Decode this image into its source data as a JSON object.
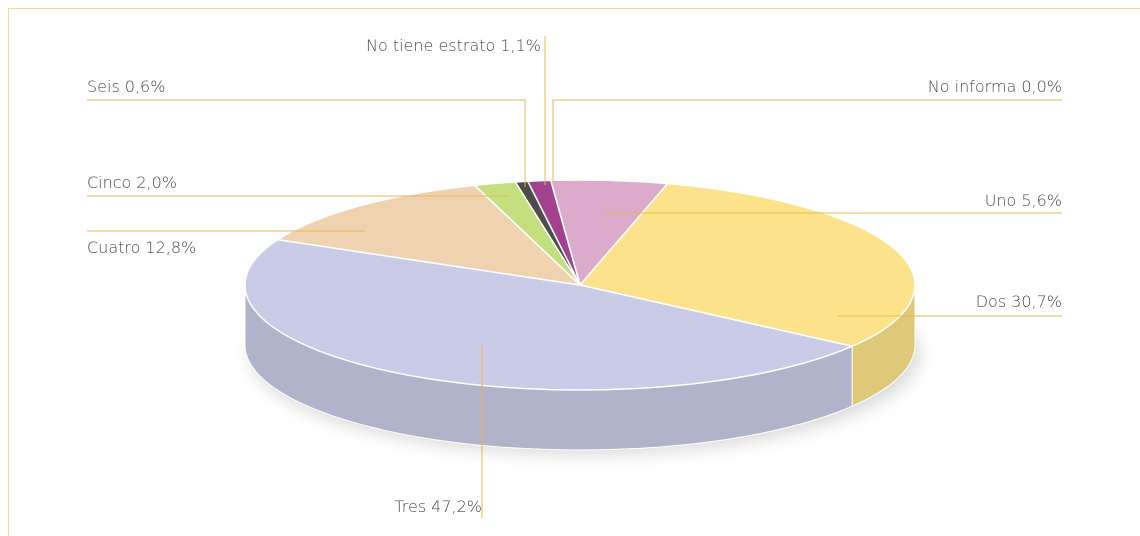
{
  "chart_data": {
    "type": "pie",
    "categories": [
      "Uno",
      "Dos",
      "Tres",
      "Cuatro",
      "Cinco",
      "Seis",
      "No tiene estrato",
      "No informa"
    ],
    "values": [
      5.6,
      30.7,
      47.2,
      12.8,
      2.0,
      0.6,
      1.1,
      0.0
    ],
    "value_labels": [
      "5,6%",
      "30,7%",
      "47,2%",
      "12,8%",
      "2,0%",
      "0,6%",
      "1,1%",
      "0,0%"
    ],
    "colors": [
      "#dcaacb",
      "#fce38b",
      "#c9cbe7",
      "#efd2af",
      "#c4df80",
      "#4d4d4d",
      "#a2428f",
      "#7a7a7a"
    ]
  }
}
